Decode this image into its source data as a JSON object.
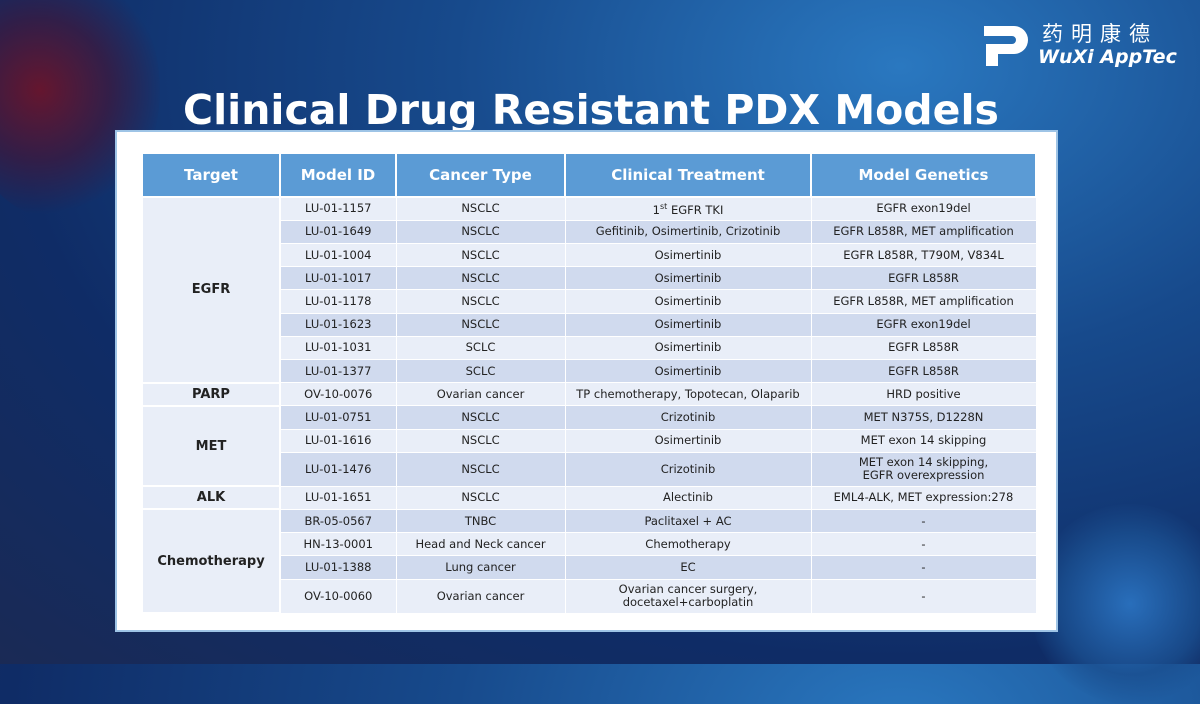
{
  "logo": {
    "chinese": "药明康德",
    "english": "WuXi AppTec"
  },
  "title": "Clinical Drug Resistant PDX Models",
  "table": {
    "headers": [
      "Target",
      "Model ID",
      "Cancer Type",
      "Clinical Treatment",
      "Model Genetics"
    ],
    "groups": [
      {
        "target": "EGFR",
        "rows": [
          [
            "LU-01-1157",
            "NSCLC",
            {
              "base": "1",
              "sup": "st",
              "rest": "EGFR TKI"
            },
            "EGFR exon19del"
          ],
          [
            "LU-01-1649",
            "NSCLC",
            "Gefitinib, Osimertinib, Crizotinib",
            "EGFR L858R, MET amplification"
          ],
          [
            "LU-01-1004",
            "NSCLC",
            "Osimertinib",
            "EGFR L858R, T790M, V834L"
          ],
          [
            "LU-01-1017",
            "NSCLC",
            "Osimertinib",
            "EGFR L858R"
          ],
          [
            "LU-01-1178",
            "NSCLC",
            "Osimertinib",
            "EGFR L858R, MET amplification"
          ],
          [
            "LU-01-1623",
            "NSCLC",
            "Osimertinib",
            "EGFR exon19del"
          ],
          [
            "LU-01-1031",
            "SCLC",
            "Osimertinib",
            "EGFR L858R"
          ],
          [
            "LU-01-1377",
            "SCLC",
            "Osimertinib",
            "EGFR L858R"
          ]
        ]
      },
      {
        "target": "PARP",
        "rows": [
          [
            "OV-10-0076",
            "Ovarian cancer",
            "TP chemotherapy, Topotecan, Olaparib",
            "HRD positive"
          ]
        ]
      },
      {
        "target": "MET",
        "rows": [
          [
            "LU-01-0751",
            "NSCLC",
            "Crizotinib",
            "MET N375S, D1228N"
          ],
          [
            "LU-01-1616",
            "NSCLC",
            "Osimertinib",
            "MET exon 14 skipping"
          ],
          [
            "LU-01-1476",
            "NSCLC",
            "Crizotinib",
            [
              "MET exon 14 skipping,",
              "EGFR overexpression"
            ]
          ]
        ]
      },
      {
        "target": "ALK",
        "rows": [
          [
            "LU-01-1651",
            "NSCLC",
            "Alectinib",
            "EML4-ALK, MET expression:278"
          ]
        ]
      },
      {
        "target": "Chemotherapy",
        "rows": [
          [
            "BR-05-0567",
            "TNBC",
            "Paclitaxel + AC",
            "-"
          ],
          [
            "HN-13-0001",
            "Head and Neck cancer",
            "Chemotherapy",
            "-"
          ],
          [
            "LU-01-1388",
            "Lung cancer",
            "EC",
            "-"
          ],
          [
            "OV-10-0060",
            "Ovarian cancer",
            [
              "Ovarian cancer surgery,",
              "docetaxel+carboplatin"
            ],
            "-"
          ]
        ]
      }
    ]
  }
}
